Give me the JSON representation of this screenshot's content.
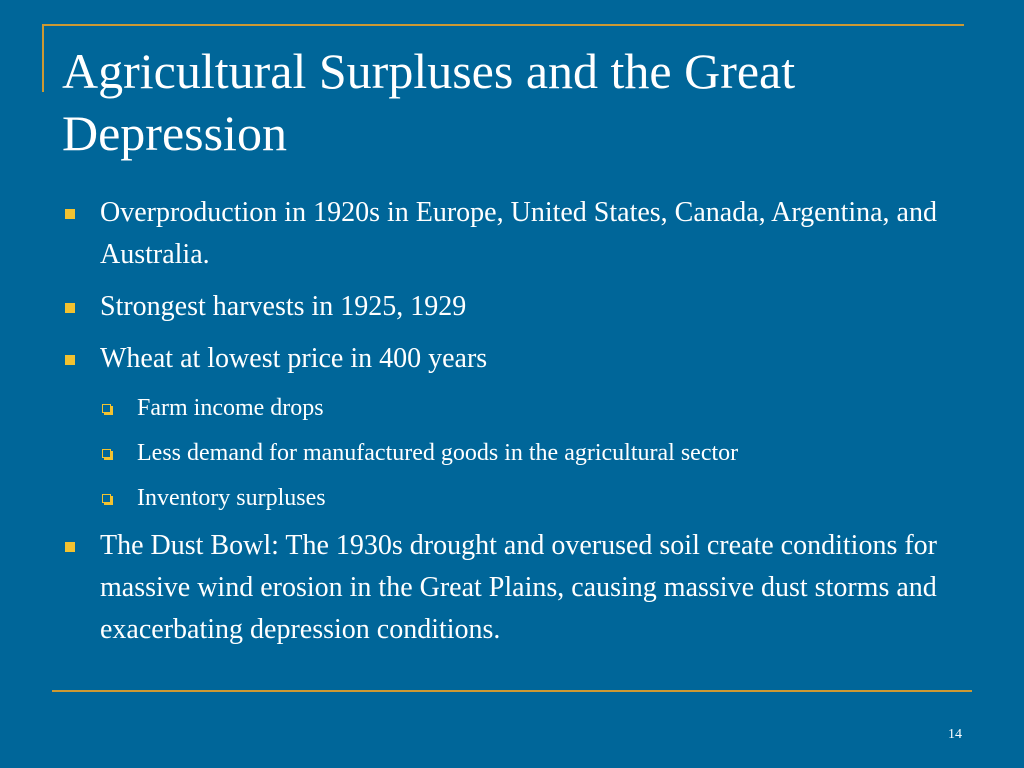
{
  "slide": {
    "title": "Agricultural Surpluses and the Great Depression",
    "page_number": "14",
    "accent_color": "#cc9933",
    "background_color": "#006699",
    "bullet_color": "#f2c230",
    "bullets": [
      {
        "text": "Overproduction in 1920s in Europe, United States, Canada, Argentina, and Australia.",
        "level": 1
      },
      {
        "text": "Strongest harvests in 1925, 1929",
        "level": 1
      },
      {
        "text": "Wheat at lowest price in 400 years",
        "level": 1
      },
      {
        "text": "Farm income drops",
        "level": 2
      },
      {
        "text": "Less demand for manufactured goods in the agricultural sector",
        "level": 2
      },
      {
        "text": "Inventory surpluses",
        "level": 2
      },
      {
        "text": "The Dust Bowl: The 1930s drought and overused soil create conditions for massive wind erosion in the Great Plains, causing massive dust storms and exacerbating depression conditions.",
        "level": 1
      }
    ]
  }
}
